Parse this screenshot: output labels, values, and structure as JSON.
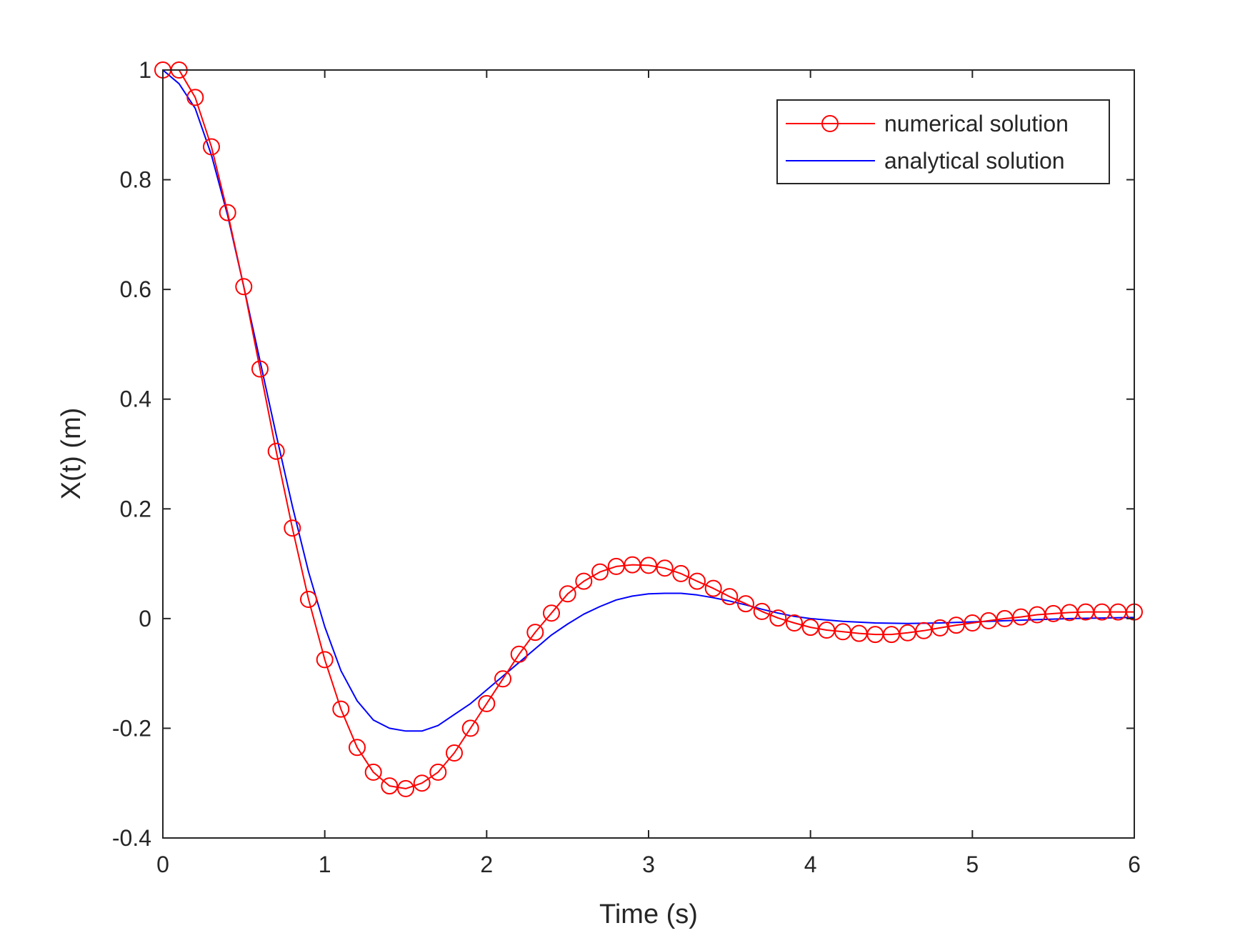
{
  "chart_data": {
    "type": "line",
    "title": "",
    "xlabel": "Time (s)",
    "ylabel": "X(t) (m)",
    "xlim": [
      0,
      6
    ],
    "ylim": [
      -0.4,
      1
    ],
    "xticks": [
      0,
      1,
      2,
      3,
      4,
      5,
      6
    ],
    "yticks": [
      -0.4,
      -0.2,
      0,
      0.2,
      0.4,
      0.6,
      0.8,
      1
    ],
    "xtick_labels": [
      "0",
      "1",
      "2",
      "3",
      "4",
      "5",
      "6"
    ],
    "ytick_labels": [
      "-0.4",
      "-0.2",
      "0",
      "0.2",
      "0.4",
      "0.6",
      "0.8",
      "1"
    ],
    "grid": false,
    "legend_position": "top-right",
    "series": [
      {
        "name": "numerical solution",
        "color": "#ff0000",
        "marker": "circle",
        "x": [
          0.0,
          0.1,
          0.2,
          0.3,
          0.4,
          0.5,
          0.6,
          0.7,
          0.8,
          0.9,
          1.0,
          1.1,
          1.2,
          1.3,
          1.4,
          1.5,
          1.6,
          1.7,
          1.8,
          1.9,
          2.0,
          2.1,
          2.2,
          2.3,
          2.4,
          2.5,
          2.6,
          2.7,
          2.8,
          2.9,
          3.0,
          3.1,
          3.2,
          3.3,
          3.4,
          3.5,
          3.6,
          3.7,
          3.8,
          3.9,
          4.0,
          4.1,
          4.2,
          4.3,
          4.4,
          4.5,
          4.6,
          4.7,
          4.8,
          4.9,
          5.0,
          5.1,
          5.2,
          5.3,
          5.4,
          5.5,
          5.6,
          5.7,
          5.8,
          5.9,
          6.0
        ],
        "y": [
          1.0,
          1.0,
          0.95,
          0.86,
          0.74,
          0.605,
          0.455,
          0.305,
          0.165,
          0.035,
          -0.075,
          -0.165,
          -0.235,
          -0.28,
          -0.305,
          -0.31,
          -0.3,
          -0.28,
          -0.245,
          -0.2,
          -0.155,
          -0.11,
          -0.065,
          -0.025,
          0.01,
          0.045,
          0.068,
          0.085,
          0.095,
          0.098,
          0.097,
          0.092,
          0.082,
          0.068,
          0.055,
          0.04,
          0.027,
          0.013,
          0.001,
          -0.008,
          -0.016,
          -0.021,
          -0.024,
          -0.027,
          -0.029,
          -0.029,
          -0.026,
          -0.022,
          -0.017,
          -0.012,
          -0.008,
          -0.004,
          0.0,
          0.003,
          0.007,
          0.009,
          0.011,
          0.012,
          0.012,
          0.012,
          0.012
        ]
      },
      {
        "name": "analytical solution",
        "color": "#0000ff",
        "marker": "none",
        "x": [
          0.0,
          0.1,
          0.2,
          0.3,
          0.4,
          0.5,
          0.6,
          0.7,
          0.8,
          0.9,
          1.0,
          1.1,
          1.2,
          1.3,
          1.4,
          1.5,
          1.6,
          1.7,
          1.8,
          1.9,
          2.0,
          2.1,
          2.2,
          2.3,
          2.4,
          2.5,
          2.6,
          2.7,
          2.8,
          2.9,
          3.0,
          3.1,
          3.2,
          3.3,
          3.4,
          3.5,
          3.6,
          3.7,
          3.8,
          3.9,
          4.0,
          4.2,
          4.4,
          4.6,
          4.8,
          5.0,
          5.2,
          5.4,
          5.6,
          5.8,
          6.0
        ],
        "y": [
          1.0,
          0.975,
          0.93,
          0.845,
          0.735,
          0.605,
          0.47,
          0.335,
          0.205,
          0.085,
          -0.015,
          -0.095,
          -0.15,
          -0.185,
          -0.2,
          -0.205,
          -0.205,
          -0.195,
          -0.175,
          -0.155,
          -0.13,
          -0.105,
          -0.08,
          -0.055,
          -0.03,
          -0.01,
          0.008,
          0.022,
          0.034,
          0.041,
          0.045,
          0.046,
          0.046,
          0.043,
          0.038,
          0.032,
          0.025,
          0.017,
          0.01,
          0.004,
          0.0,
          -0.005,
          -0.008,
          -0.009,
          -0.008,
          -0.006,
          -0.004,
          -0.002,
          0.0,
          0.001,
          0.002
        ]
      }
    ]
  }
}
